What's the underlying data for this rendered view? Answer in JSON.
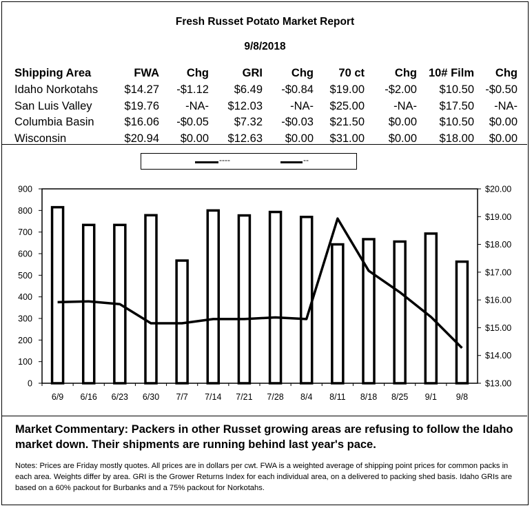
{
  "report": {
    "title": "Fresh Russet Potato Market Report",
    "date": "9/8/2018"
  },
  "table": {
    "headers": [
      "Shipping Area",
      "FWA",
      "Chg",
      "GRI",
      "Chg",
      "70 ct",
      "Chg",
      "10# Film",
      "Chg"
    ],
    "rows": [
      [
        "Idaho Norkotahs",
        "$14.27",
        "-$1.12",
        "$6.49",
        "-$0.84",
        "$19.00",
        "-$2.00",
        "$10.50",
        "-$0.50"
      ],
      [
        "San Luis Valley",
        "$19.76",
        "-NA-",
        "$12.03",
        "-NA-",
        "$25.00",
        "-NA-",
        "$17.50",
        "-NA-"
      ],
      [
        "Columbia Basin",
        "$16.06",
        "-$0.05",
        "$7.32",
        "-$0.03",
        "$21.50",
        "$0.00",
        "$10.50",
        "$0.00"
      ],
      [
        "Wisconsin",
        "$20.94",
        "$0.00",
        "$12.63",
        "$0.00",
        "$31.00",
        "$0.00",
        "$18.00",
        "$0.00"
      ]
    ]
  },
  "chart_data": {
    "type": "bar",
    "categories": [
      "6/9",
      "6/16",
      "6/23",
      "6/30",
      "7/7",
      "7/14",
      "7/21",
      "7/28",
      "8/4",
      "8/11",
      "8/18",
      "8/25",
      "9/1",
      "9/8"
    ],
    "series": [
      {
        "name": "----",
        "type": "bar",
        "axis": "left",
        "values": [
          815,
          733,
          733,
          778,
          568,
          800,
          777,
          793,
          770,
          643,
          667,
          656,
          693,
          563
        ]
      },
      {
        "name": "--",
        "type": "line",
        "axis": "right",
        "values": [
          15.92,
          15.95,
          15.85,
          15.16,
          15.16,
          15.31,
          15.31,
          15.37,
          15.31,
          18.93,
          17.05,
          16.28,
          15.39,
          14.27
        ]
      }
    ],
    "y_left": {
      "ylim": [
        0,
        900
      ],
      "ticks": [
        "0",
        "100",
        "200",
        "300",
        "400",
        "500",
        "600",
        "700",
        "800",
        "900"
      ]
    },
    "y_right": {
      "ylim": [
        13,
        20
      ],
      "ticks": [
        "$13.00",
        "$14.00",
        "$15.00",
        "$16.00",
        "$17.00",
        "$18.00",
        "$19.00",
        "$20.00"
      ]
    },
    "legend": {
      "placement": "top",
      "labels": [
        "----",
        "--"
      ]
    },
    "grid": false
  },
  "commentary": "Market Commentary: Packers in other Russet growing areas are refusing to follow the Idaho market down.  Their shipments are running behind last year's pace.",
  "notes": "Notes: Prices are Friday mostly quotes. All prices are in dollars per cwt. FWA is a weighted average of shipping point prices for common packs in each area. Weights differ by area. GRI is the Grower Returns Index for each individual area, on a delivered to packing shed basis. Idaho GRIs are based on a 60% packout for Burbanks and a 75% packout for Norkotahs.",
  "colors": {
    "ink": "#000000",
    "bar_fill": "#ffffff"
  }
}
